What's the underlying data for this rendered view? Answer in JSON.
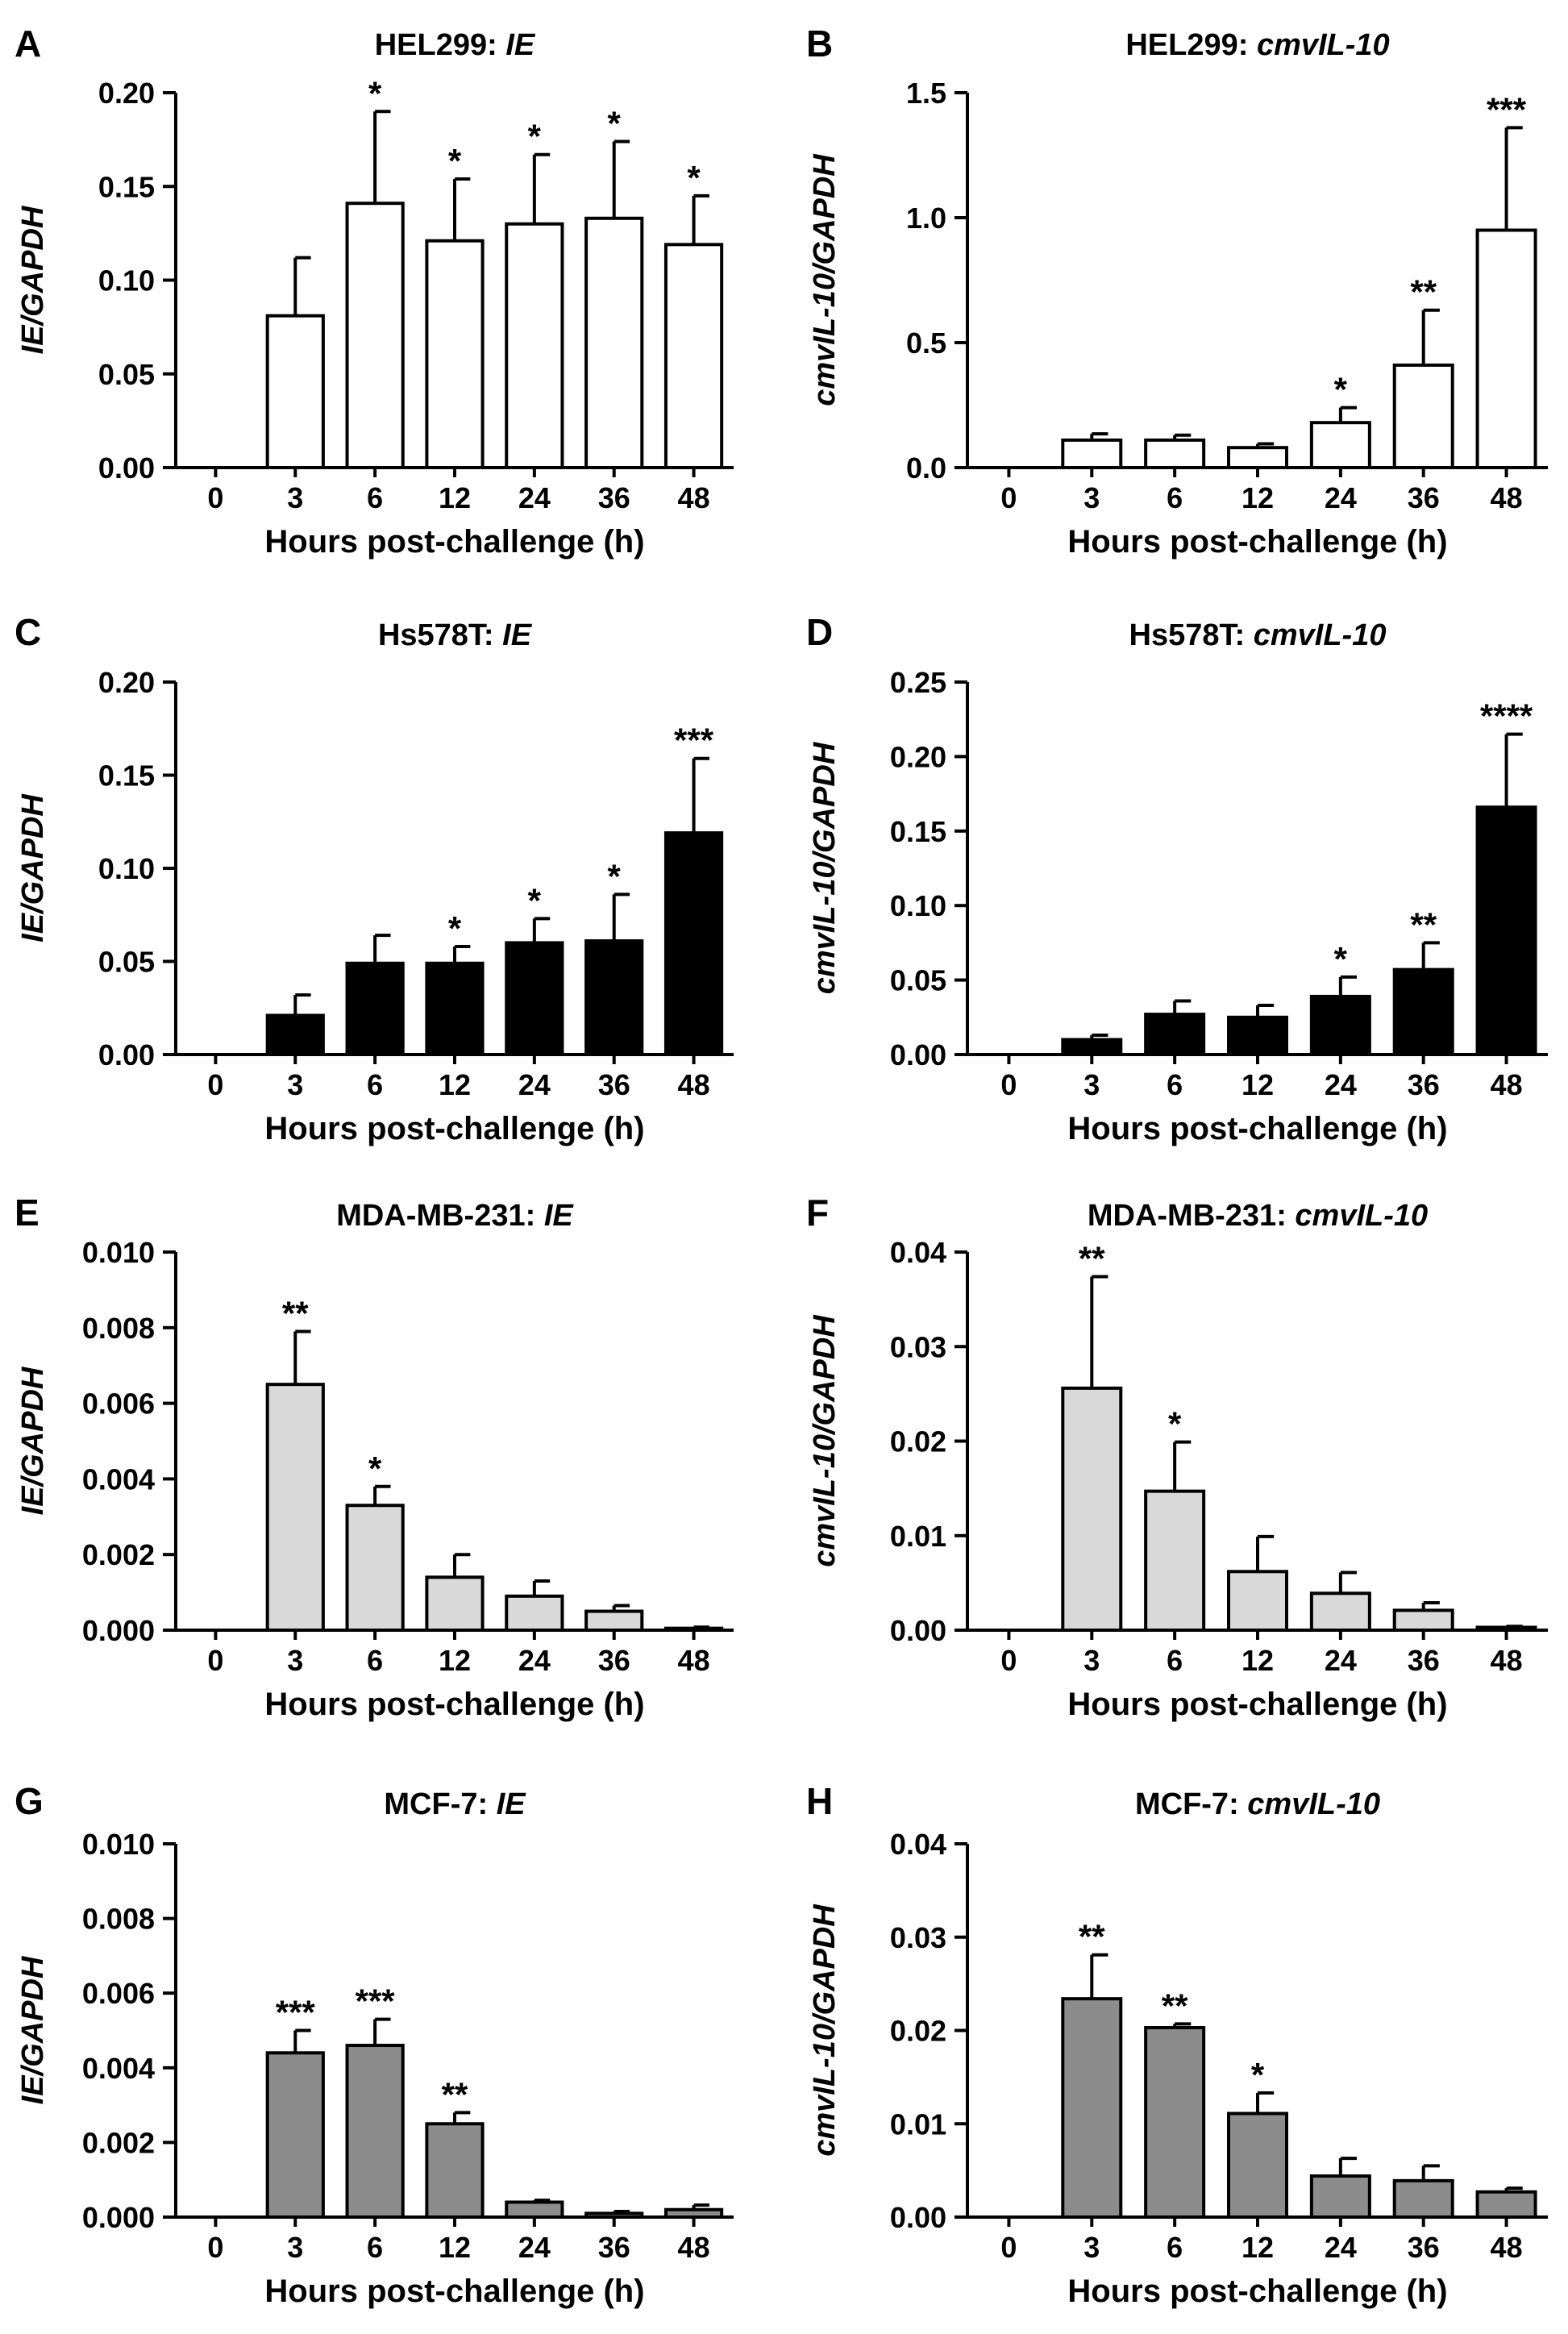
{
  "figure": {
    "xlabel": "Hours post-challenge (h)",
    "categories": [
      "0",
      "3",
      "6",
      "12",
      "24",
      "36",
      "48"
    ]
  },
  "chart_data": [
    {
      "type": "bar",
      "panel": "A",
      "title_prefix": "HEL299: ",
      "title_gene": "IE",
      "xlabel": "Hours post-challenge (h)",
      "ylabel": "IE/GAPDH",
      "categories": [
        "0",
        "3",
        "6",
        "12",
        "24",
        "36",
        "48"
      ],
      "values": [
        0,
        0.081,
        0.141,
        0.121,
        0.13,
        0.133,
        0.119
      ],
      "errors": [
        0,
        0.031,
        0.049,
        0.033,
        0.037,
        0.041,
        0.026
      ],
      "significance": [
        "",
        "",
        "*",
        "*",
        "*",
        "*",
        "*"
      ],
      "ylim": [
        0,
        0.2
      ],
      "yticks": [
        0,
        0.05,
        0.1,
        0.15,
        0.2
      ],
      "ytick_labels": [
        "0.00",
        "0.05",
        "0.10",
        "0.15",
        "0.20"
      ],
      "bar_color": "#ffffff"
    },
    {
      "type": "bar",
      "panel": "B",
      "title_prefix": "HEL299: ",
      "title_gene": "cmvIL-10",
      "xlabel": "Hours post-challenge (h)",
      "ylabel": "cmvIL-10/GAPDH",
      "categories": [
        "0",
        "3",
        "6",
        "12",
        "24",
        "36",
        "48"
      ],
      "values": [
        0,
        0.11,
        0.11,
        0.08,
        0.18,
        0.41,
        0.95
      ],
      "errors": [
        0,
        0.025,
        0.02,
        0.015,
        0.06,
        0.22,
        0.41
      ],
      "significance": [
        "",
        "",
        "",
        "",
        "*",
        "**",
        "***"
      ],
      "ylim": [
        0,
        1.5
      ],
      "yticks": [
        0,
        0.5,
        1.0,
        1.5
      ],
      "ytick_labels": [
        "0.0",
        "0.5",
        "1.0",
        "1.5"
      ],
      "bar_color": "#ffffff"
    },
    {
      "type": "bar",
      "panel": "C",
      "title_prefix": "Hs578T: ",
      "title_gene": "IE",
      "xlabel": "Hours post-challenge (h)",
      "ylabel": "IE/GAPDH",
      "categories": [
        "0",
        "3",
        "6",
        "12",
        "24",
        "36",
        "48"
      ],
      "values": [
        0,
        0.021,
        0.049,
        0.049,
        0.06,
        0.061,
        0.119
      ],
      "errors": [
        0,
        0.011,
        0.015,
        0.009,
        0.013,
        0.025,
        0.04
      ],
      "significance": [
        "",
        "",
        "",
        "*",
        "*",
        "*",
        "***"
      ],
      "ylim": [
        0,
        0.2
      ],
      "yticks": [
        0,
        0.05,
        0.1,
        0.15,
        0.2
      ],
      "ytick_labels": [
        "0.00",
        "0.05",
        "0.10",
        "0.15",
        "0.20"
      ],
      "bar_color": "#000000"
    },
    {
      "type": "bar",
      "panel": "D",
      "title_prefix": "Hs578T: ",
      "title_gene": "cmvIL-10",
      "xlabel": "Hours post-challenge (h)",
      "ylabel": "cmvIL-10/GAPDH",
      "categories": [
        "0",
        "3",
        "6",
        "12",
        "24",
        "36",
        "48"
      ],
      "values": [
        0,
        0.01,
        0.027,
        0.025,
        0.039,
        0.057,
        0.166
      ],
      "errors": [
        0,
        0.003,
        0.009,
        0.008,
        0.013,
        0.018,
        0.049
      ],
      "significance": [
        "",
        "",
        "",
        "",
        "*",
        "**",
        "****"
      ],
      "ylim": [
        0,
        0.25
      ],
      "yticks": [
        0,
        0.05,
        0.1,
        0.15,
        0.2,
        0.25
      ],
      "ytick_labels": [
        "0.00",
        "0.05",
        "0.10",
        "0.15",
        "0.20",
        "0.25"
      ],
      "bar_color": "#000000"
    },
    {
      "type": "bar",
      "panel": "E",
      "title_prefix": "MDA-MB-231: ",
      "title_gene": "IE",
      "xlabel": "Hours post-challenge (h)",
      "ylabel": "IE/GAPDH",
      "categories": [
        "0",
        "3",
        "6",
        "12",
        "24",
        "36",
        "48"
      ],
      "values": [
        0,
        0.0065,
        0.0033,
        0.0014,
        0.0009,
        0.0005,
        5e-05
      ],
      "errors": [
        0,
        0.0014,
        0.0005,
        0.0006,
        0.0004,
        0.00015,
        3e-05
      ],
      "significance": [
        "",
        "**",
        "*",
        "",
        "",
        "",
        ""
      ],
      "ylim": [
        0,
        0.01
      ],
      "yticks": [
        0,
        0.002,
        0.004,
        0.006,
        0.008,
        0.01
      ],
      "ytick_labels": [
        "0.000",
        "0.002",
        "0.004",
        "0.006",
        "0.008",
        "0.010"
      ],
      "bar_color": "#d9d9d9"
    },
    {
      "type": "bar",
      "panel": "F",
      "title_prefix": "MDA-MB-231: ",
      "title_gene": "cmvIL-10",
      "xlabel": "Hours post-challenge (h)",
      "ylabel": "cmvIL-10/GAPDH",
      "categories": [
        "0",
        "3",
        "6",
        "12",
        "24",
        "36",
        "48"
      ],
      "values": [
        0,
        0.0256,
        0.0147,
        0.0062,
        0.0039,
        0.0021,
        0.0003
      ],
      "errors": [
        0,
        0.0118,
        0.0052,
        0.0037,
        0.0022,
        0.0008,
        0.0001
      ],
      "significance": [
        "",
        "**",
        "*",
        "",
        "",
        "",
        ""
      ],
      "ylim": [
        0,
        0.04
      ],
      "yticks": [
        0,
        0.01,
        0.02,
        0.03,
        0.04
      ],
      "ytick_labels": [
        "0.00",
        "0.01",
        "0.02",
        "0.03",
        "0.04"
      ],
      "bar_color": "#d9d9d9"
    },
    {
      "type": "bar",
      "panel": "G",
      "title_prefix": "MCF-7: ",
      "title_gene": "IE",
      "xlabel": "Hours post-challenge (h)",
      "ylabel": "IE/GAPDH",
      "categories": [
        "0",
        "3",
        "6",
        "12",
        "24",
        "36",
        "48"
      ],
      "values": [
        0,
        0.0044,
        0.0046,
        0.0025,
        0.0004,
        0.0001,
        0.0002
      ],
      "errors": [
        0,
        0.0006,
        0.0007,
        0.0003,
        5e-05,
        5e-05,
        0.00012
      ],
      "significance": [
        "",
        "***",
        "***",
        "**",
        "",
        "",
        ""
      ],
      "ylim": [
        0,
        0.01
      ],
      "yticks": [
        0,
        0.002,
        0.004,
        0.006,
        0.008,
        0.01
      ],
      "ytick_labels": [
        "0.000",
        "0.002",
        "0.004",
        "0.006",
        "0.008",
        "0.010"
      ],
      "bar_color": "#8c8c8c"
    },
    {
      "type": "bar",
      "panel": "H",
      "title_prefix": "MCF-7: ",
      "title_gene": "cmvIL-10",
      "xlabel": "Hours post-challenge (h)",
      "ylabel": "cmvIL-10/GAPDH",
      "categories": [
        "0",
        "3",
        "6",
        "12",
        "24",
        "36",
        "48"
      ],
      "values": [
        0,
        0.0234,
        0.0203,
        0.0111,
        0.0044,
        0.0039,
        0.0027
      ],
      "errors": [
        0,
        0.0047,
        0.0004,
        0.0022,
        0.0019,
        0.0016,
        0.0004
      ],
      "significance": [
        "",
        "**",
        "**",
        "*",
        "",
        "",
        ""
      ],
      "ylim": [
        0,
        0.04
      ],
      "yticks": [
        0,
        0.01,
        0.02,
        0.03,
        0.04
      ],
      "ytick_labels": [
        "0.00",
        "0.01",
        "0.02",
        "0.03",
        "0.04"
      ],
      "bar_color": "#8c8c8c"
    }
  ]
}
